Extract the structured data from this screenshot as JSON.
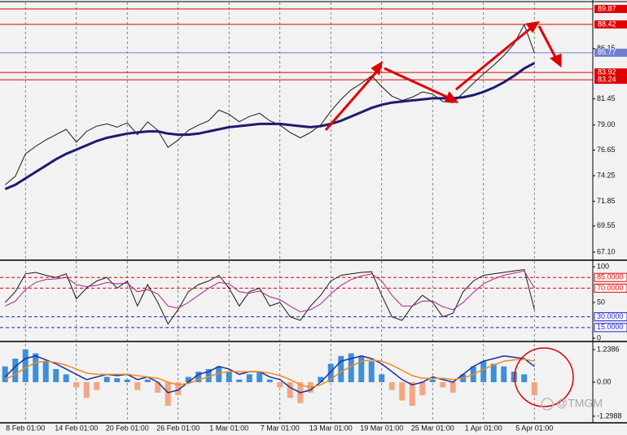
{
  "chart_data": [
    {
      "type": "line",
      "ylim": [
        66.34,
        90.48
      ],
      "yticks": [
        {
          "value": 86.15,
          "label": "86.15"
        },
        81.45,
        {
          "value": 79,
          "label": "79.00"
        },
        76.65,
        74.25,
        71.85,
        69.55,
        {
          "value": 67.1,
          "label": "67.10"
        }
      ],
      "levels": [
        {
          "value": 89.87,
          "color": "#e00000"
        },
        {
          "value": 88.42,
          "color": "#e00000"
        },
        {
          "value": 85.77,
          "color": "#6f7fd0"
        },
        {
          "value": 83.92,
          "color": "#e00000"
        },
        {
          "value": 83.24,
          "color": "#e00000"
        }
      ],
      "series": [
        {
          "color": "#1a1a1a",
          "width": 1,
          "values": [
            73.4,
            74.2,
            76.3,
            77.0,
            77.6,
            78.1,
            78.6,
            77.4,
            78.4,
            78.9,
            79.1,
            78.8,
            79.2,
            78.1,
            79.3,
            78.5,
            76.9,
            77.6,
            78.5,
            79.0,
            79.4,
            80.4,
            80.0,
            79.3,
            79.8,
            80.1,
            79.4,
            79.0,
            78.3,
            77.8,
            78.3,
            79.0,
            80.3,
            81.4,
            82.3,
            82.9,
            83.6,
            82.6,
            81.7,
            81.3,
            81.6,
            82.1,
            81.9,
            81.2,
            81.1,
            82.0,
            82.9,
            83.8,
            84.6,
            85.5,
            86.6,
            88.4,
            85.77
          ]
        },
        {
          "color": "#1c1c6e",
          "width": 3,
          "values": [
            73.0,
            73.4,
            74.0,
            74.6,
            75.2,
            75.8,
            76.3,
            76.7,
            77.1,
            77.5,
            77.8,
            78.0,
            78.2,
            78.3,
            78.4,
            78.4,
            78.2,
            78.1,
            78.1,
            78.2,
            78.4,
            78.6,
            78.8,
            78.9,
            79.0,
            79.1,
            79.1,
            79.1,
            79.0,
            78.9,
            78.8,
            78.9,
            79.1,
            79.4,
            79.8,
            80.2,
            80.6,
            80.9,
            81.1,
            81.2,
            81.3,
            81.4,
            81.5,
            81.5,
            81.5,
            81.6,
            81.8,
            82.1,
            82.5,
            83.0,
            83.6,
            84.3,
            84.8
          ]
        }
      ]
    },
    {
      "type": "line",
      "ylim": [
        -4.5,
        106.8
      ],
      "yticks": [
        100,
        50,
        0
      ],
      "levels": [
        {
          "value": 85,
          "label": "85.0000",
          "color": "#e00000"
        },
        {
          "value": 70,
          "label": "70.0000",
          "color": "#e00000"
        },
        {
          "value": 30,
          "label": "30.0000",
          "color": "#2020d0"
        },
        {
          "value": 15,
          "label": "15.0000",
          "color": "#2020d0"
        }
      ],
      "series": [
        {
          "color": "#1a1a1a",
          "width": 1,
          "values": [
            50,
            65,
            90,
            92,
            88,
            85,
            90,
            55,
            70,
            80,
            85,
            70,
            80,
            45,
            75,
            50,
            20,
            40,
            65,
            75,
            80,
            88,
            70,
            45,
            65,
            70,
            45,
            50,
            30,
            25,
            45,
            60,
            80,
            88,
            90,
            92,
            93,
            60,
            30,
            25,
            45,
            60,
            50,
            30,
            35,
            65,
            80,
            88,
            90,
            92,
            94,
            96,
            40
          ]
        },
        {
          "color": "#b0208a",
          "width": 1,
          "values": [
            45,
            52,
            68,
            78,
            82,
            83,
            85,
            75,
            72,
            74,
            78,
            76,
            77,
            65,
            68,
            62,
            45,
            42,
            50,
            60,
            70,
            78,
            76,
            65,
            63,
            66,
            58,
            54,
            45,
            37,
            40,
            48,
            62,
            74,
            82,
            87,
            90,
            80,
            60,
            45,
            45,
            52,
            52,
            44,
            40,
            50,
            64,
            76,
            83,
            88,
            91,
            94,
            70
          ]
        }
      ]
    },
    {
      "type": "bar",
      "ylim": [
        -1.55,
        1.49
      ],
      "yticks": [
        1.2386,
        {
          "value": 0,
          "label": "0.00"
        },
        -1.2988
      ],
      "categories": [
        null,
        null,
        "8 Feb 01:00",
        null,
        null,
        null,
        null,
        "14 Feb 01:00",
        null,
        null,
        null,
        null,
        "20 Feb 01:00",
        null,
        null,
        null,
        null,
        "26 Feb 01:00",
        null,
        null,
        null,
        null,
        "1 Mar 01:00",
        null,
        null,
        null,
        null,
        "7 Mar 01:00",
        null,
        null,
        null,
        null,
        "13 Mar 01:00",
        null,
        null,
        null,
        null,
        "19 Mar 01:00",
        null,
        null,
        null,
        null,
        "25 Mar 01:00",
        null,
        null,
        null,
        null,
        "1 Apr 01:00",
        null,
        null,
        null,
        null,
        "5 Apr 01:00"
      ],
      "values": [
        0.6,
        0.9,
        1.25,
        1.1,
        0.8,
        0.5,
        0.3,
        -0.2,
        -0.6,
        -0.3,
        0.2,
        0.15,
        0.1,
        -0.3,
        0.1,
        -0.4,
        -0.9,
        -0.5,
        0.2,
        0.4,
        0.5,
        0.6,
        0.4,
        0.1,
        0.3,
        0.4,
        0.1,
        -0.2,
        -0.6,
        -0.8,
        -0.4,
        0.2,
        0.7,
        1.0,
        1.1,
        1.0,
        0.8,
        0.3,
        -0.3,
        -0.7,
        -0.9,
        -0.5,
        0.1,
        -0.2,
        -0.4,
        0.3,
        0.6,
        0.8,
        0.7,
        0.6,
        0.4,
        0.3,
        -0.5
      ],
      "positive_color": "#3d8fd9",
      "negative_color": "#f4a582",
      "series": [
        {
          "color": "#1c2fa0",
          "width": 1.5,
          "values": [
            0.2,
            0.6,
            0.9,
            1.0,
            0.85,
            0.7,
            0.5,
            0.3,
            0.1,
            0.2,
            0.3,
            0.25,
            0.3,
            0.1,
            0.2,
            0.0,
            -0.4,
            -0.3,
            0.0,
            0.3,
            0.4,
            0.6,
            0.5,
            0.3,
            0.4,
            0.4,
            0.2,
            0.1,
            -0.2,
            -0.4,
            -0.3,
            0.0,
            0.4,
            0.8,
            0.9,
            1.0,
            0.9,
            0.7,
            0.4,
            0.1,
            -0.1,
            0.0,
            0.2,
            0.1,
            0.0,
            0.3,
            0.6,
            0.8,
            0.9,
            1.0,
            0.95,
            0.9,
            0.6
          ]
        },
        {
          "color": "#f08a1c",
          "width": 1.5,
          "values": [
            0.1,
            0.3,
            0.55,
            0.75,
            0.8,
            0.75,
            0.65,
            0.5,
            0.35,
            0.3,
            0.3,
            0.3,
            0.3,
            0.25,
            0.2,
            0.15,
            0.0,
            -0.1,
            -0.05,
            0.1,
            0.2,
            0.35,
            0.4,
            0.4,
            0.4,
            0.4,
            0.35,
            0.25,
            0.1,
            -0.1,
            -0.2,
            -0.1,
            0.1,
            0.4,
            0.6,
            0.8,
            0.85,
            0.8,
            0.65,
            0.45,
            0.25,
            0.15,
            0.15,
            0.15,
            0.1,
            0.15,
            0.3,
            0.5,
            0.65,
            0.8,
            0.85,
            0.88,
            0.8
          ]
        }
      ]
    }
  ],
  "watermark": "@TMGM"
}
